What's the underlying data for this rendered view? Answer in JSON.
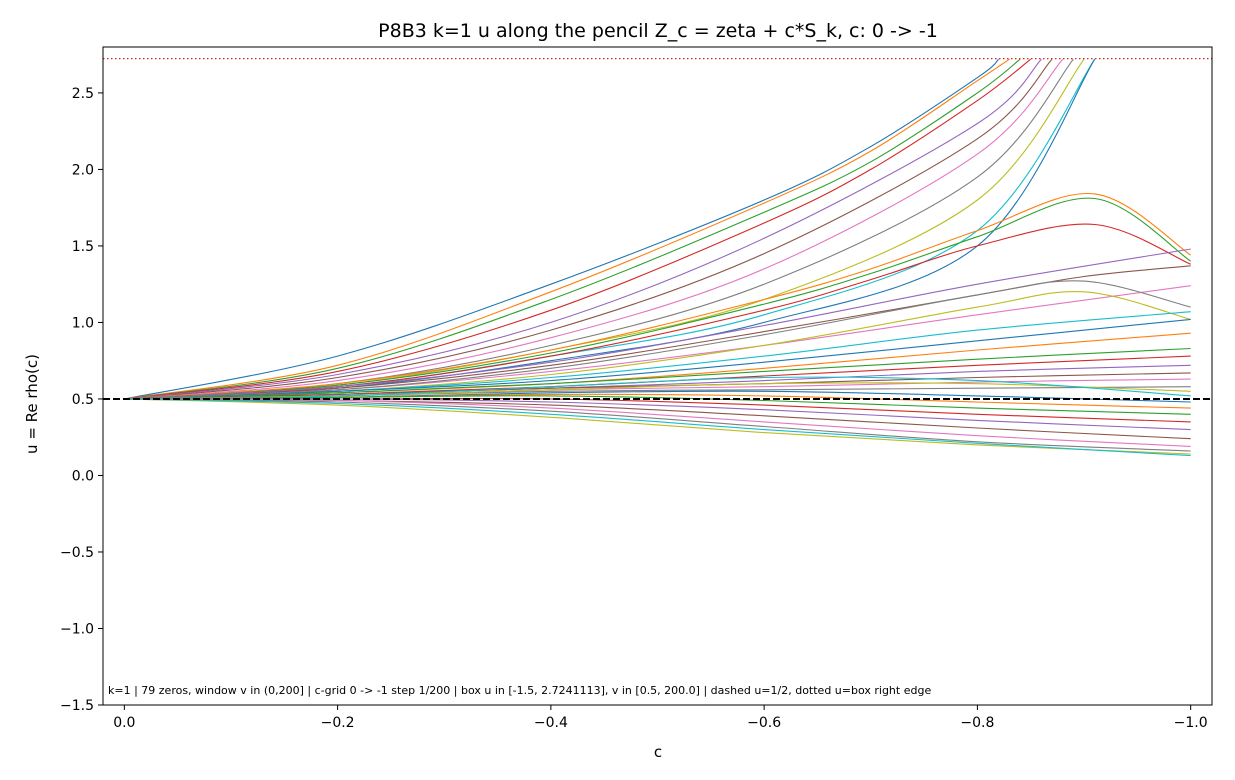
{
  "chart_data": {
    "type": "line",
    "title": "P8B3  k=1   u along the pencil Z_c = zeta + c*S_k,  c: 0 -> -1",
    "xlabel": "c",
    "ylabel": "u = Re rho(c)",
    "xlim": [
      0.02,
      -1.02
    ],
    "ylim": [
      -1.5,
      2.8
    ],
    "x_reversed": true,
    "xticks": [
      0.0,
      -0.2,
      -0.4,
      -0.6,
      -0.8,
      -1.0
    ],
    "xtick_labels": [
      "0.0",
      "−0.2",
      "−0.4",
      "−0.6",
      "−0.8",
      "−1.0"
    ],
    "yticks": [
      -1.5,
      -1.0,
      -0.5,
      0.0,
      0.5,
      1.0,
      1.5,
      2.0,
      2.5
    ],
    "ytick_labels": [
      "−1.5",
      "−1.0",
      "−0.5",
      "0.0",
      "0.5",
      "1.0",
      "1.5",
      "2.0",
      "2.5"
    ],
    "grid": false,
    "legend": "none",
    "annotation": "k=1 | 79 zeros, window v in (0,200] | c-grid 0 -> -1 step 1/200 | box u in [-1.5, 2.7241113], v in [0.5, 200.0] | dashed u=1/2, dotted u=box right edge",
    "reference_lines": [
      {
        "y": 0.5,
        "style": "dashed",
        "color": "#000000"
      },
      {
        "y": 2.7241113,
        "style": "dotted",
        "color": "#d62728"
      }
    ],
    "palette": [
      "#1f77b4",
      "#ff7f0e",
      "#2ca02c",
      "#d62728",
      "#9467bd",
      "#8c564b",
      "#e377c2",
      "#7f7f7f",
      "#bcbd22",
      "#17becf"
    ],
    "series": [
      {
        "x": [
          0,
          -0.2,
          -0.4,
          -0.6,
          -0.7,
          -0.8,
          -0.82
        ],
        "y": [
          0.5,
          0.78,
          1.25,
          1.8,
          2.15,
          2.6,
          2.72
        ]
      },
      {
        "x": [
          0,
          -0.2,
          -0.4,
          -0.6,
          -0.7,
          -0.8,
          -0.83
        ],
        "y": [
          0.5,
          0.72,
          1.2,
          1.78,
          2.12,
          2.58,
          2.72
        ]
      },
      {
        "x": [
          0,
          -0.2,
          -0.4,
          -0.6,
          -0.7,
          -0.8,
          -0.84
        ],
        "y": [
          0.5,
          0.7,
          1.15,
          1.72,
          2.05,
          2.5,
          2.72
        ]
      },
      {
        "x": [
          0,
          -0.2,
          -0.4,
          -0.6,
          -0.7,
          -0.8,
          -0.85
        ],
        "y": [
          0.5,
          0.68,
          1.08,
          1.65,
          2.0,
          2.45,
          2.72
        ]
      },
      {
        "x": [
          0,
          -0.2,
          -0.4,
          -0.6,
          -0.8,
          -0.86
        ],
        "y": [
          0.5,
          0.66,
          1.0,
          1.55,
          2.3,
          2.72
        ]
      },
      {
        "x": [
          0,
          -0.2,
          -0.4,
          -0.6,
          -0.8,
          -0.87
        ],
        "y": [
          0.5,
          0.64,
          0.95,
          1.45,
          2.2,
          2.72
        ]
      },
      {
        "x": [
          0,
          -0.2,
          -0.4,
          -0.6,
          -0.8,
          -0.88
        ],
        "y": [
          0.5,
          0.62,
          0.9,
          1.35,
          2.1,
          2.72
        ]
      },
      {
        "x": [
          0,
          -0.2,
          -0.4,
          -0.6,
          -0.8,
          -0.89
        ],
        "y": [
          0.5,
          0.6,
          0.85,
          1.25,
          1.95,
          2.72
        ]
      },
      {
        "x": [
          0,
          -0.2,
          -0.4,
          -0.6,
          -0.8,
          -0.9
        ],
        "y": [
          0.5,
          0.59,
          0.82,
          1.15,
          1.8,
          2.72
        ]
      },
      {
        "x": [
          0,
          -0.2,
          -0.4,
          -0.6,
          -0.8,
          -0.91
        ],
        "y": [
          0.5,
          0.58,
          0.78,
          1.05,
          1.6,
          2.72
        ]
      },
      {
        "x": [
          0,
          -0.2,
          -0.4,
          -0.6,
          -0.8,
          -0.91
        ],
        "y": [
          0.5,
          0.57,
          0.75,
          1.0,
          1.5,
          2.72
        ]
      },
      {
        "x": [
          0,
          -0.2,
          -0.4,
          -0.6,
          -0.7,
          -0.8,
          -0.91,
          -1.0
        ],
        "y": [
          0.5,
          0.6,
          0.82,
          1.15,
          1.35,
          1.6,
          1.84,
          1.44
        ]
      },
      {
        "x": [
          0,
          -0.2,
          -0.4,
          -0.6,
          -0.7,
          -0.8,
          -0.91,
          -1.0
        ],
        "y": [
          0.5,
          0.59,
          0.8,
          1.12,
          1.32,
          1.56,
          1.81,
          1.4
        ]
      },
      {
        "x": [
          0,
          -0.2,
          -0.4,
          -0.6,
          -0.7,
          -0.8,
          -0.91,
          -1.0
        ],
        "y": [
          0.5,
          0.58,
          0.78,
          1.08,
          1.28,
          1.5,
          1.64,
          1.38
        ]
      },
      {
        "x": [
          0,
          -0.2,
          -0.4,
          -0.6,
          -0.8,
          -1.0
        ],
        "y": [
          0.5,
          0.58,
          0.74,
          0.98,
          1.25,
          1.48
        ]
      },
      {
        "x": [
          0,
          -0.2,
          -0.4,
          -0.6,
          -0.8,
          -0.9,
          -1.0
        ],
        "y": [
          0.5,
          0.57,
          0.72,
          0.94,
          1.18,
          1.3,
          1.37
        ]
      },
      {
        "x": [
          0,
          -0.2,
          -0.4,
          -0.6,
          -0.8,
          -1.0
        ],
        "y": [
          0.5,
          0.56,
          0.68,
          0.85,
          1.05,
          1.24
        ]
      },
      {
        "x": [
          0,
          -0.2,
          -0.4,
          -0.6,
          -0.8,
          -0.9,
          -1.0
        ],
        "y": [
          0.5,
          0.56,
          0.7,
          0.92,
          1.18,
          1.27,
          1.1
        ]
      },
      {
        "x": [
          0,
          -0.2,
          -0.4,
          -0.6,
          -0.8,
          -0.9,
          -1.0
        ],
        "y": [
          0.5,
          0.55,
          0.66,
          0.85,
          1.1,
          1.2,
          1.02
        ]
      },
      {
        "x": [
          0,
          -0.2,
          -0.4,
          -0.6,
          -0.8,
          -1.0
        ],
        "y": [
          0.5,
          0.55,
          0.64,
          0.78,
          0.95,
          1.07
        ]
      },
      {
        "x": [
          0,
          -0.2,
          -0.4,
          -0.6,
          -0.8,
          -1.0
        ],
        "y": [
          0.5,
          0.55,
          0.62,
          0.74,
          0.88,
          1.02
        ]
      },
      {
        "x": [
          0,
          -0.2,
          -0.4,
          -0.6,
          -0.8,
          -1.0
        ],
        "y": [
          0.5,
          0.54,
          0.6,
          0.7,
          0.82,
          0.93
        ]
      },
      {
        "x": [
          0,
          -0.2,
          -0.4,
          -0.6,
          -0.8,
          -1.0
        ],
        "y": [
          0.5,
          0.54,
          0.6,
          0.68,
          0.76,
          0.83
        ]
      },
      {
        "x": [
          0,
          -0.2,
          -0.4,
          -0.6,
          -0.8,
          -1.0
        ],
        "y": [
          0.5,
          0.53,
          0.58,
          0.65,
          0.72,
          0.78
        ]
      },
      {
        "x": [
          0,
          -0.2,
          -0.4,
          -0.6,
          -0.8,
          -1.0
        ],
        "y": [
          0.5,
          0.53,
          0.57,
          0.62,
          0.68,
          0.72
        ]
      },
      {
        "x": [
          0,
          -0.2,
          -0.4,
          -0.6,
          -0.8,
          -1.0
        ],
        "y": [
          0.5,
          0.53,
          0.57,
          0.6,
          0.64,
          0.67
        ]
      },
      {
        "x": [
          0,
          -0.2,
          -0.4,
          -0.6,
          -0.8,
          -1.0
        ],
        "y": [
          0.5,
          0.52,
          0.56,
          0.58,
          0.61,
          0.63
        ]
      },
      {
        "x": [
          0,
          -0.2,
          -0.4,
          -0.6,
          -0.8,
          -1.0
        ],
        "y": [
          0.5,
          0.52,
          0.55,
          0.56,
          0.57,
          0.58
        ]
      },
      {
        "x": [
          0,
          -0.2,
          -0.4,
          -0.6,
          -0.8,
          -1.0
        ],
        "y": [
          0.5,
          0.52,
          0.56,
          0.6,
          0.6,
          0.55
        ]
      },
      {
        "x": [
          0,
          -0.2,
          -0.4,
          -0.6,
          -0.8,
          -1.0
        ],
        "y": [
          0.5,
          0.52,
          0.58,
          0.64,
          0.62,
          0.52
        ]
      },
      {
        "x": [
          0,
          -0.2,
          -0.4,
          -0.6,
          -0.8,
          -1.0
        ],
        "y": [
          0.5,
          0.51,
          0.54,
          0.55,
          0.52,
          0.48
        ]
      },
      {
        "x": [
          0,
          -0.2,
          -0.4,
          -0.6,
          -0.8,
          -1.0
        ],
        "y": [
          0.5,
          0.51,
          0.53,
          0.52,
          0.48,
          0.44
        ]
      },
      {
        "x": [
          0,
          -0.2,
          -0.4,
          -0.6,
          -0.8,
          -1.0
        ],
        "y": [
          0.5,
          0.51,
          0.52,
          0.49,
          0.44,
          0.4
        ]
      },
      {
        "x": [
          0,
          -0.2,
          -0.4,
          -0.6,
          -0.8,
          -1.0
        ],
        "y": [
          0.5,
          0.5,
          0.5,
          0.46,
          0.4,
          0.35
        ]
      },
      {
        "x": [
          0,
          -0.2,
          -0.4,
          -0.6,
          -0.8,
          -1.0
        ],
        "y": [
          0.5,
          0.5,
          0.48,
          0.43,
          0.36,
          0.3
        ]
      },
      {
        "x": [
          0,
          -0.2,
          -0.4,
          -0.6,
          -0.8,
          -1.0
        ],
        "y": [
          0.5,
          0.49,
          0.46,
          0.39,
          0.31,
          0.24
        ]
      },
      {
        "x": [
          0,
          -0.2,
          -0.4,
          -0.6,
          -0.8,
          -1.0
        ],
        "y": [
          0.5,
          0.49,
          0.44,
          0.35,
          0.26,
          0.19
        ]
      },
      {
        "x": [
          0,
          -0.2,
          -0.4,
          -0.6,
          -0.8,
          -1.0
        ],
        "y": [
          0.5,
          0.48,
          0.42,
          0.32,
          0.22,
          0.16
        ]
      },
      {
        "x": [
          0,
          -0.2,
          -0.4,
          -0.6,
          -0.8,
          -1.0
        ],
        "y": [
          0.5,
          0.46,
          0.38,
          0.28,
          0.2,
          0.14
        ]
      },
      {
        "x": [
          0,
          -0.2,
          -0.4,
          -0.6,
          -0.8,
          -1.0
        ],
        "y": [
          0.5,
          0.47,
          0.4,
          0.3,
          0.21,
          0.13
        ]
      }
    ]
  }
}
